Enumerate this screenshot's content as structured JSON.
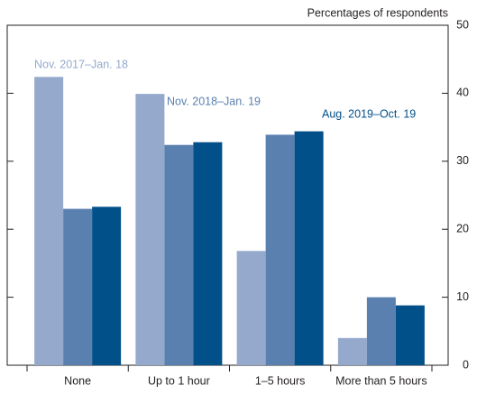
{
  "chart_data": {
    "type": "bar",
    "y_label": "Percentages of respondents",
    "categories": [
      "None",
      "Up to 1 hour",
      "1–5 hours",
      "More than 5 hours"
    ],
    "series": [
      {
        "name": "Nov. 2017–Jan. 18",
        "color": "#94a9cc",
        "values": [
          42.4,
          39.9,
          16.8,
          4.0
        ]
      },
      {
        "name": "Nov. 2018–Jan. 19",
        "color": "#5a80b0",
        "values": [
          23.0,
          32.4,
          33.9,
          10.0
        ]
      },
      {
        "name": "Aug. 2019–Oct. 19",
        "color": "#02508a",
        "values": [
          23.3,
          32.8,
          34.4,
          8.8
        ]
      }
    ],
    "ylim": [
      0,
      50
    ],
    "yticks": [
      0,
      10,
      20,
      30,
      40,
      50
    ],
    "grid": false
  }
}
